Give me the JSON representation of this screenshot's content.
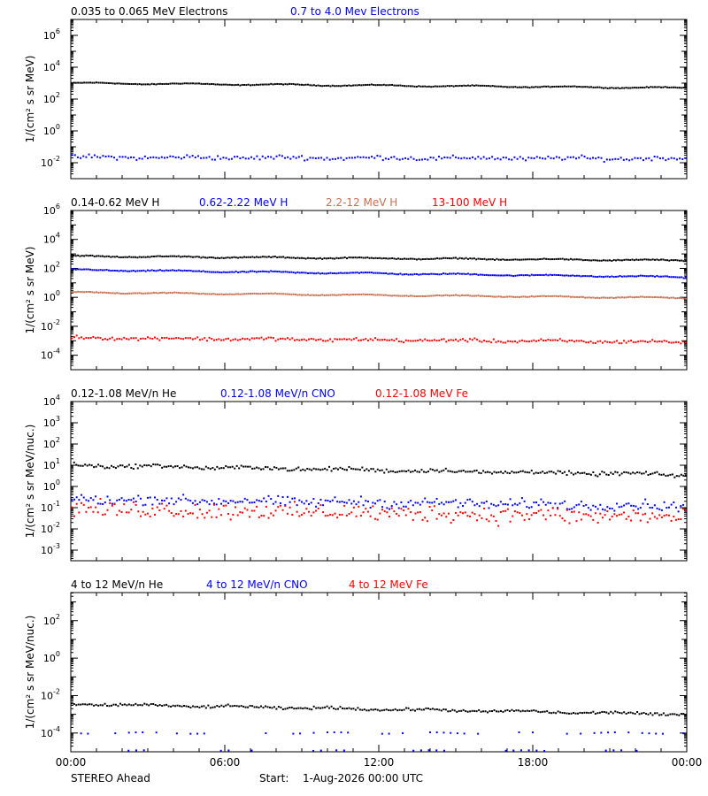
{
  "footer": {
    "spacecraft": "STEREO Ahead",
    "start_label": "Start:",
    "start_value": "1-Aug-2026 00:00 UTC"
  },
  "x_axis": {
    "ticks": [
      "00:00",
      "06:00",
      "12:00",
      "18:00",
      "00:00"
    ],
    "range_hours": [
      0,
      24
    ]
  },
  "chart_data": [
    {
      "type": "scatter",
      "log_y": true,
      "ylabel": "1/(cm² s sr MeV)",
      "ylim_exp": [
        -3,
        7
      ],
      "ytick_exps": [
        -2,
        0,
        2,
        4,
        6
      ],
      "ytick_labels": [
        "10-2",
        "100",
        "102",
        "104",
        "106"
      ],
      "legend": [
        {
          "name": "0.035 to 0.065 MeV Electrons",
          "color": "#000000"
        },
        {
          "name": "0.7 to 4.0 Mev Electrons",
          "color": "#0000ff"
        }
      ],
      "series": [
        {
          "name": "0.035 to 0.065 MeV Electrons",
          "color": "#000000",
          "points": 300,
          "value_start": 1000,
          "value_end": 500,
          "scatter_dex": 0.02,
          "missing_fraction": 0
        },
        {
          "name": "0.7 to 4.0 Mev Electrons",
          "color": "#0000ff",
          "points": 220,
          "value_start": 0.022,
          "value_end": 0.018,
          "scatter_dex": 0.12,
          "missing_fraction": 0
        }
      ]
    },
    {
      "type": "scatter",
      "log_y": true,
      "ylabel": "1/(cm² s sr MeV)",
      "ylim_exp": [
        -5,
        6
      ],
      "ytick_exps": [
        -4,
        -2,
        0,
        2,
        4,
        6
      ],
      "ytick_labels": [
        "10-4",
        "10-2",
        "100",
        "102",
        "104",
        "106"
      ],
      "legend": [
        {
          "name": "0.14-0.62 MeV H",
          "color": "#000000"
        },
        {
          "name": "0.62-2.22 MeV H",
          "color": "#0000ff"
        },
        {
          "name": "2.2-12 MeV H",
          "color": "#c87050"
        },
        {
          "name": "13-100 MeV H",
          "color": "#ff0000"
        }
      ],
      "series": [
        {
          "name": "0.14-0.62 MeV H",
          "color": "#000000",
          "points": 300,
          "value_start": 700,
          "value_end": 350,
          "scatter_dex": 0.03,
          "missing_fraction": 0
        },
        {
          "name": "0.62-2.22 MeV H",
          "color": "#0000ff",
          "points": 300,
          "value_start": 80,
          "value_end": 25,
          "scatter_dex": 0.03,
          "missing_fraction": 0
        },
        {
          "name": "2.2-12 MeV H",
          "color": "#c87050",
          "points": 300,
          "value_start": 2.2,
          "value_end": 0.9,
          "scatter_dex": 0.02,
          "missing_fraction": 0
        },
        {
          "name": "13-100 MeV H",
          "color": "#ff0000",
          "points": 260,
          "value_start": 0.0016,
          "value_end": 0.0008,
          "scatter_dex": 0.1,
          "missing_fraction": 0
        }
      ]
    },
    {
      "type": "scatter",
      "log_y": true,
      "ylabel": "1/(cm² s sr MeV/nuc.)",
      "ylim_exp": [
        -3.5,
        4
      ],
      "ytick_exps": [
        -3,
        -2,
        -1,
        0,
        1,
        2,
        3,
        4
      ],
      "ytick_labels": [
        "10-3",
        "10-2",
        "10-1",
        "100",
        "101",
        "102",
        "103",
        "104"
      ],
      "legend": [
        {
          "name": "0.12-1.08 MeV/n He",
          "color": "#000000"
        },
        {
          "name": "0.12-1.08 MeV/n CNO",
          "color": "#0000ff"
        },
        {
          "name": "0.12-1.08 MeV Fe",
          "color": "#ff0000"
        }
      ],
      "series": [
        {
          "name": "0.12-1.08 MeV/n He",
          "color": "#000000",
          "points": 280,
          "value_start": 10,
          "value_end": 3.5,
          "scatter_dex": 0.08,
          "missing_fraction": 0
        },
        {
          "name": "0.12-1.08 MeV/n CNO",
          "color": "#0000ff",
          "points": 260,
          "value_start": 0.25,
          "value_end": 0.12,
          "scatter_dex": 0.2,
          "missing_fraction": 0
        },
        {
          "name": "0.12-1.08 MeV Fe",
          "color": "#ff0000",
          "points": 260,
          "value_start": 0.09,
          "value_end": 0.035,
          "scatter_dex": 0.35,
          "missing_fraction": 0
        }
      ]
    },
    {
      "type": "scatter",
      "log_y": true,
      "ylabel": "1/(cm² s sr MeV/nuc.)",
      "ylim_exp": [
        -5,
        3.5
      ],
      "ytick_exps": [
        -4,
        -2,
        0,
        2
      ],
      "ytick_labels": [
        "10-4",
        "10-2",
        "100",
        "102"
      ],
      "legend": [
        {
          "name": "4 to 12 MeV/n He",
          "color": "#000000"
        },
        {
          "name": "4 to 12 MeV/n CNO",
          "color": "#0000ff"
        },
        {
          "name": "4 to 12 MeV Fe",
          "color": "#ff0000"
        }
      ],
      "series": [
        {
          "name": "4 to 12 MeV/n He",
          "color": "#000000",
          "points": 280,
          "value_start": 0.0035,
          "value_end": 0.001,
          "scatter_dex": 0.06,
          "missing_fraction": 0
        },
        {
          "name": "4 to 12 MeV/n CNO",
          "color": "#0000ff",
          "points": 90,
          "value_start": 0.0001,
          "value_end": 0.0001,
          "scatter_dex": 0.0,
          "missing_fraction": 0.5
        },
        {
          "name": "4 to 12 MeV/n CNO (floor)",
          "color": "#0000ff",
          "points": 80,
          "value_start": 1.1e-05,
          "value_end": 1.1e-05,
          "scatter_dex": 0.0,
          "missing_fraction": 0.3
        }
      ]
    }
  ]
}
